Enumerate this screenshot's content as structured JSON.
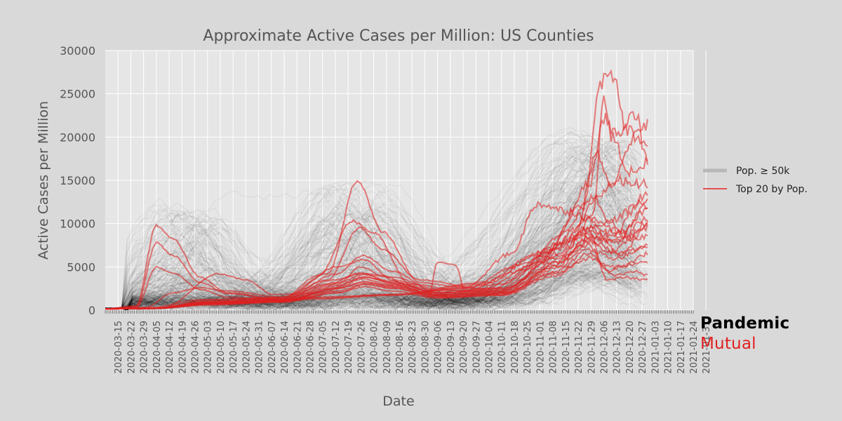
{
  "chart_data": {
    "type": "line",
    "title": "Approximate Active Cases per Million: US Counties",
    "xlabel": "Date",
    "ylabel": "Active Cases per Million",
    "ylim": [
      0,
      30000
    ],
    "yticks": [
      "0",
      "5000",
      "10000",
      "15000",
      "20000",
      "25000",
      "30000"
    ],
    "xlim_days": [
      -7,
      315
    ],
    "xtick_labels": [
      "2020-03-15",
      "2020-03-22",
      "2020-03-29",
      "2020-04-05",
      "2020-04-12",
      "2020-04-19",
      "2020-04-26",
      "2020-05-03",
      "2020-05-10",
      "2020-05-17",
      "2020-05-24",
      "2020-05-31",
      "2020-06-07",
      "2020-06-14",
      "2020-06-21",
      "2020-06-28",
      "2020-07-05",
      "2020-07-12",
      "2020-07-19",
      "2020-07-26",
      "2020-08-02",
      "2020-08-09",
      "2020-08-16",
      "2020-08-23",
      "2020-08-30",
      "2020-09-06",
      "2020-09-13",
      "2020-09-20",
      "2020-09-27",
      "2020-10-04",
      "2020-10-11",
      "2020-10-18",
      "2020-10-25",
      "2020-11-01",
      "2020-11-08",
      "2020-11-15",
      "2020-11-22",
      "2020-11-29",
      "2020-12-06",
      "2020-12-13",
      "2020-12-20",
      "2020-12-27",
      "2021-01-03",
      "2021-01-10",
      "2021-01-17",
      "2021-01-24",
      "2021-01-31"
    ],
    "grid": true,
    "legend_position": "right",
    "legend": [
      {
        "label": "Pop. ≥ 50k",
        "color": "#b8b8b8"
      },
      {
        "label": "Top 20 by Pop.",
        "color": "#e05050"
      }
    ],
    "background_series_count": 300,
    "highlighted_series": [
      {
        "name": "county-1",
        "points": [
          [
            -7,
            150
          ],
          [
            10,
            500
          ],
          [
            21,
            9800
          ],
          [
            30,
            8200
          ],
          [
            45,
            3800
          ],
          [
            60,
            2000
          ],
          [
            90,
            1200
          ],
          [
            110,
            1500
          ],
          [
            150,
            1800
          ],
          [
            190,
            2500
          ],
          [
            220,
            5200
          ],
          [
            250,
            9500
          ],
          [
            262,
            12800
          ],
          [
            268,
            10500
          ],
          [
            280,
            8500
          ],
          [
            290,
            9800
          ]
        ]
      },
      {
        "name": "county-2",
        "points": [
          [
            -7,
            150
          ],
          [
            10,
            400
          ],
          [
            21,
            7800
          ],
          [
            30,
            6300
          ],
          [
            45,
            3200
          ],
          [
            60,
            1900
          ],
          [
            90,
            1200
          ],
          [
            110,
            1400
          ],
          [
            150,
            1800
          ],
          [
            200,
            3200
          ],
          [
            230,
            6500
          ],
          [
            262,
            9500
          ],
          [
            275,
            8500
          ],
          [
            290,
            10500
          ]
        ]
      },
      {
        "name": "county-3",
        "points": [
          [
            -7,
            150
          ],
          [
            10,
            300
          ],
          [
            21,
            5000
          ],
          [
            30,
            4300
          ],
          [
            45,
            2400
          ],
          [
            60,
            1500
          ],
          [
            90,
            1100
          ],
          [
            110,
            1300
          ],
          [
            150,
            1700
          ],
          [
            200,
            3000
          ],
          [
            235,
            7000
          ],
          [
            262,
            9000
          ],
          [
            275,
            6500
          ],
          [
            290,
            7500
          ]
        ]
      },
      {
        "name": "county-4",
        "points": [
          [
            -7,
            150
          ],
          [
            15,
            300
          ],
          [
            30,
            2000
          ],
          [
            45,
            2600
          ],
          [
            60,
            2200
          ],
          [
            90,
            1500
          ],
          [
            115,
            4200
          ],
          [
            131,
            15000
          ],
          [
            145,
            9000
          ],
          [
            165,
            3200
          ],
          [
            190,
            2600
          ],
          [
            215,
            6500
          ],
          [
            230,
            12300
          ],
          [
            245,
            11500
          ],
          [
            265,
            10000
          ],
          [
            290,
            12500
          ]
        ]
      },
      {
        "name": "county-5",
        "points": [
          [
            -7,
            150
          ],
          [
            15,
            200
          ],
          [
            45,
            1200
          ],
          [
            90,
            1400
          ],
          [
            110,
            4000
          ],
          [
            128,
            10300
          ],
          [
            140,
            9000
          ],
          [
            160,
            3000
          ],
          [
            190,
            2200
          ],
          [
            220,
            4500
          ],
          [
            250,
            8500
          ],
          [
            262,
            18000
          ],
          [
            270,
            14500
          ],
          [
            285,
            21000
          ],
          [
            290,
            21300
          ]
        ]
      },
      {
        "name": "county-6",
        "points": [
          [
            -7,
            150
          ],
          [
            20,
            200
          ],
          [
            50,
            1200
          ],
          [
            90,
            1500
          ],
          [
            115,
            3500
          ],
          [
            132,
            9500
          ],
          [
            145,
            7000
          ],
          [
            165,
            3500
          ],
          [
            200,
            2500
          ],
          [
            230,
            5500
          ],
          [
            255,
            12000
          ],
          [
            264,
            26500
          ],
          [
            271,
            27300
          ],
          [
            278,
            21000
          ],
          [
            286,
            19500
          ],
          [
            290,
            19400
          ]
        ]
      },
      {
        "name": "county-7",
        "points": [
          [
            -7,
            150
          ],
          [
            20,
            200
          ],
          [
            50,
            1000
          ],
          [
            90,
            1300
          ],
          [
            120,
            5000
          ],
          [
            135,
            5800
          ],
          [
            150,
            3500
          ],
          [
            175,
            2200
          ],
          [
            205,
            2500
          ],
          [
            235,
            6500
          ],
          [
            258,
            14500
          ],
          [
            266,
            22000
          ],
          [
            275,
            20000
          ],
          [
            283,
            22800
          ],
          [
            290,
            17200
          ]
        ]
      },
      {
        "name": "county-8",
        "points": [
          [
            -7,
            150
          ],
          [
            20,
            200
          ],
          [
            50,
            900
          ],
          [
            90,
            1200
          ],
          [
            118,
            3500
          ],
          [
            134,
            4200
          ],
          [
            150,
            3800
          ],
          [
            175,
            2400
          ],
          [
            210,
            3000
          ],
          [
            240,
            7000
          ],
          [
            260,
            11000
          ],
          [
            266,
            24500
          ],
          [
            270,
            20000
          ],
          [
            280,
            16000
          ],
          [
            290,
            17000
          ]
        ]
      },
      {
        "name": "county-9",
        "points": [
          [
            -7,
            150
          ],
          [
            20,
            200
          ],
          [
            50,
            900
          ],
          [
            90,
            1200
          ],
          [
            120,
            4200
          ],
          [
            134,
            6300
          ],
          [
            150,
            4500
          ],
          [
            175,
            2000
          ],
          [
            210,
            2500
          ],
          [
            240,
            7500
          ],
          [
            260,
            13000
          ],
          [
            275,
            15000
          ],
          [
            290,
            14500
          ]
        ]
      },
      {
        "name": "county-10",
        "points": [
          [
            -7,
            150
          ],
          [
            20,
            200
          ],
          [
            50,
            1000
          ],
          [
            90,
            1300
          ],
          [
            115,
            3000
          ],
          [
            133,
            4300
          ],
          [
            150,
            3300
          ],
          [
            175,
            2000
          ],
          [
            210,
            2200
          ],
          [
            240,
            6500
          ],
          [
            258,
            9500
          ],
          [
            270,
            8500
          ],
          [
            290,
            13500
          ]
        ]
      },
      {
        "name": "county-11",
        "points": [
          [
            -7,
            150
          ],
          [
            25,
            300
          ],
          [
            55,
            4200
          ],
          [
            70,
            3500
          ],
          [
            85,
            1800
          ],
          [
            110,
            2000
          ],
          [
            135,
            3800
          ],
          [
            155,
            3000
          ],
          [
            180,
            1500
          ],
          [
            214,
            2000
          ],
          [
            240,
            5500
          ],
          [
            258,
            8000
          ],
          [
            275,
            6500
          ],
          [
            290,
            9500
          ]
        ]
      },
      {
        "name": "county-12",
        "points": [
          [
            -7,
            150
          ],
          [
            20,
            200
          ],
          [
            50,
            900
          ],
          [
            90,
            1200
          ],
          [
            120,
            3200
          ],
          [
            135,
            4100
          ],
          [
            150,
            3000
          ],
          [
            175,
            1700
          ],
          [
            210,
            2200
          ],
          [
            240,
            6000
          ],
          [
            258,
            7500
          ],
          [
            268,
            4500
          ],
          [
            275,
            5000
          ],
          [
            290,
            6500
          ]
        ]
      },
      {
        "name": "county-13",
        "points": [
          [
            -7,
            150
          ],
          [
            20,
            200
          ],
          [
            50,
            800
          ],
          [
            90,
            1100
          ],
          [
            120,
            2500
          ],
          [
            135,
            3200
          ],
          [
            150,
            2800
          ],
          [
            175,
            1800
          ],
          [
            210,
            2100
          ],
          [
            240,
            5000
          ],
          [
            258,
            8500
          ],
          [
            270,
            8000
          ],
          [
            290,
            8500
          ]
        ]
      },
      {
        "name": "county-14",
        "points": [
          [
            -7,
            150
          ],
          [
            20,
            200
          ],
          [
            50,
            700
          ],
          [
            90,
            1000
          ],
          [
            120,
            2000
          ],
          [
            136,
            3000
          ],
          [
            150,
            2600
          ],
          [
            175,
            1600
          ],
          [
            210,
            1800
          ],
          [
            240,
            4500
          ],
          [
            258,
            7000
          ],
          [
            272,
            6000
          ],
          [
            290,
            7200
          ]
        ]
      },
      {
        "name": "county-15",
        "points": [
          [
            -7,
            150
          ],
          [
            20,
            200
          ],
          [
            50,
            800
          ],
          [
            90,
            1100
          ],
          [
            120,
            3000
          ],
          [
            133,
            5000
          ],
          [
            145,
            4000
          ],
          [
            160,
            2700
          ],
          [
            170,
            1500
          ],
          [
            175,
            5600
          ],
          [
            185,
            5200
          ],
          [
            190,
            2200
          ],
          [
            210,
            2500
          ],
          [
            240,
            5500
          ],
          [
            260,
            10500
          ],
          [
            275,
            9000
          ],
          [
            290,
            11500
          ]
        ]
      },
      {
        "name": "county-16",
        "points": [
          [
            -7,
            150
          ],
          [
            20,
            200
          ],
          [
            50,
            700
          ],
          [
            90,
            1000
          ],
          [
            120,
            2600
          ],
          [
            134,
            3600
          ],
          [
            150,
            2900
          ],
          [
            175,
            1800
          ],
          [
            210,
            2000
          ],
          [
            240,
            5200
          ],
          [
            258,
            8500
          ],
          [
            272,
            7800
          ],
          [
            290,
            12000
          ]
        ]
      },
      {
        "name": "county-17",
        "points": [
          [
            -7,
            150
          ],
          [
            20,
            200
          ],
          [
            50,
            700
          ],
          [
            90,
            1000
          ],
          [
            120,
            2200
          ],
          [
            135,
            3000
          ],
          [
            150,
            2500
          ],
          [
            175,
            1500
          ],
          [
            210,
            1800
          ],
          [
            240,
            4300
          ],
          [
            258,
            6000
          ],
          [
            270,
            5000
          ],
          [
            290,
            5500
          ]
        ]
      },
      {
        "name": "county-18",
        "points": [
          [
            -7,
            150
          ],
          [
            20,
            200
          ],
          [
            50,
            700
          ],
          [
            90,
            1000
          ],
          [
            120,
            2800
          ],
          [
            135,
            3800
          ],
          [
            150,
            3200
          ],
          [
            175,
            2000
          ],
          [
            210,
            2300
          ],
          [
            240,
            6200
          ],
          [
            258,
            9000
          ],
          [
            268,
            3500
          ],
          [
            278,
            3800
          ],
          [
            290,
            3500
          ]
        ]
      },
      {
        "name": "county-19",
        "points": [
          [
            -7,
            150
          ],
          [
            20,
            200
          ],
          [
            50,
            600
          ],
          [
            90,
            900
          ],
          [
            120,
            2000
          ],
          [
            135,
            2700
          ],
          [
            150,
            2200
          ],
          [
            175,
            1400
          ],
          [
            210,
            1700
          ],
          [
            240,
            4000
          ],
          [
            258,
            6500
          ],
          [
            272,
            4000
          ],
          [
            282,
            4500
          ],
          [
            290,
            4000
          ]
        ]
      },
      {
        "name": "county-20",
        "points": [
          [
            -7,
            150
          ],
          [
            20,
            200
          ],
          [
            50,
            700
          ],
          [
            90,
            1000
          ],
          [
            120,
            2500
          ],
          [
            135,
            3300
          ],
          [
            150,
            2700
          ],
          [
            175,
            1700
          ],
          [
            210,
            1900
          ],
          [
            240,
            4800
          ],
          [
            258,
            7800
          ],
          [
            270,
            6800
          ],
          [
            290,
            10000
          ]
        ]
      }
    ]
  },
  "brand": {
    "line1": "Pandemic",
    "line2": "Mutual"
  }
}
